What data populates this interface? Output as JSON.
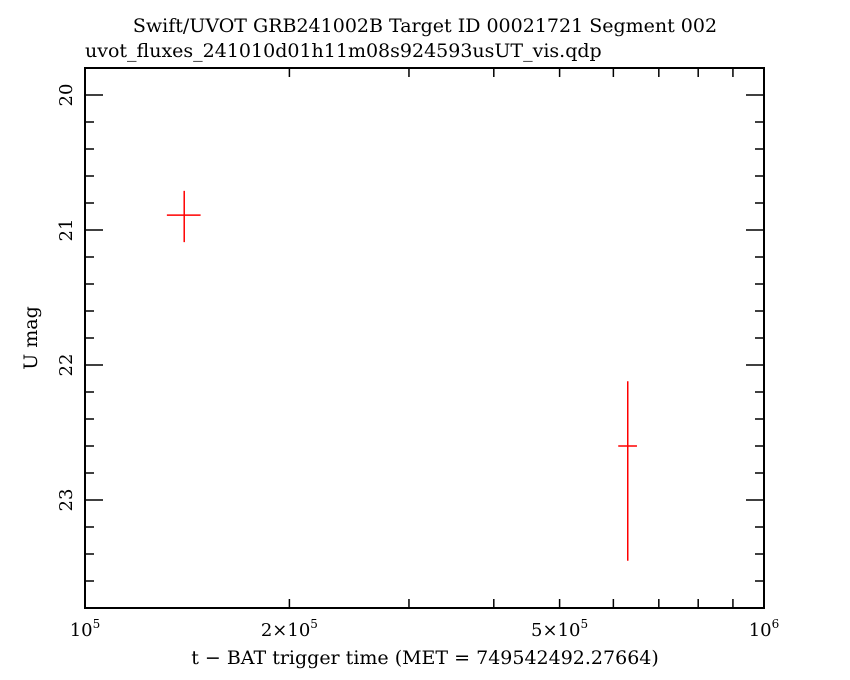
{
  "chart_data": {
    "type": "scatter",
    "title": "Swift/UVOT GRB241002B Target ID 00021721 Segment 002",
    "subtitle": "uvot_fluxes_241010d01h11m08s924593usUT_vis.qdp",
    "xlabel": "t − BAT trigger time (MET = 749542492.27664)",
    "ylabel": "U mag",
    "x_scale": "log",
    "xlim": [
      100000,
      1000000
    ],
    "ylim": [
      23.8,
      19.8
    ],
    "y_inverted": true,
    "grid": false,
    "x_ticks": [
      {
        "value": 100000,
        "base": "10",
        "exp": "5"
      },
      {
        "value": 200000,
        "base": "2×10",
        "exp": "5"
      },
      {
        "value": 500000,
        "base": "5×10",
        "exp": "5"
      },
      {
        "value": 1000000,
        "base": "10",
        "exp": "6"
      }
    ],
    "y_ticks": [
      "20",
      "21",
      "22",
      "23"
    ],
    "series": [
      {
        "color": "#ff0000",
        "points": [
          {
            "x": 140000,
            "xerr": [
              8000,
              8000
            ],
            "y": 20.89,
            "yerr": [
              0.18,
              0.2
            ]
          },
          {
            "x": 630000,
            "xerr": [
              20000,
              20000
            ],
            "y": 22.6,
            "yerr": [
              0.48,
              0.85
            ]
          }
        ]
      }
    ]
  }
}
